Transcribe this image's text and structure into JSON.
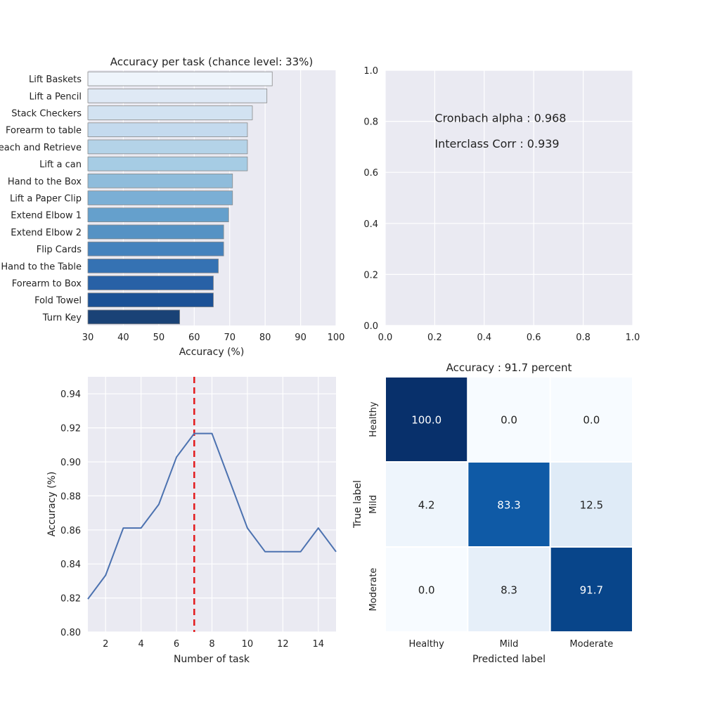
{
  "chart_data": [
    {
      "type": "bar",
      "orientation": "horizontal",
      "title": "Accuracy per task (chance level: 33%)",
      "xlabel": "Accuracy (%)",
      "ylabel": "",
      "xlim": [
        30,
        100
      ],
      "xticks": [
        "30",
        "40",
        "50",
        "60",
        "70",
        "80",
        "90",
        "100"
      ],
      "categories": [
        "Lift Baskets",
        "Lift a Pencil",
        "Stack Checkers",
        "Forearm to table",
        "Reach and Retrieve",
        "Lift a can",
        "Hand to the Box",
        "Lift a Paper Clip",
        "Extend Elbow 1",
        "Extend Elbow 2",
        "Flip Cards",
        "Hand to the Table",
        "Forearm to Box",
        "Fold Towel",
        "Turn Key"
      ],
      "values": [
        82.0,
        80.5,
        76.4,
        75.0,
        75.0,
        75.0,
        70.8,
        70.8,
        69.7,
        68.3,
        68.3,
        66.8,
        65.4,
        65.4,
        55.9
      ],
      "colors": [
        "#eef4fb",
        "#dfe9f5",
        "#d2e2f1",
        "#c4daee",
        "#b4d3e8",
        "#a6cce4",
        "#8fbcdb",
        "#7bafd5",
        "#65a0cc",
        "#5592c4",
        "#4482bd",
        "#3572b3",
        "#2861a6",
        "#1b5196",
        "#1a4276"
      ]
    },
    {
      "type": "scatter",
      "title": "",
      "xlim": [
        0.0,
        1.0
      ],
      "ylim": [
        0.0,
        1.0
      ],
      "xticks": [
        "0.0",
        "0.2",
        "0.4",
        "0.6",
        "0.8",
        "1.0"
      ],
      "yticks": [
        "0.0",
        "0.2",
        "0.4",
        "0.6",
        "0.8",
        "1.0"
      ],
      "annotations": [
        {
          "text": "Cronbach alpha : 0.968",
          "x": 0.2,
          "y": 0.8
        },
        {
          "text": "Interclass Corr : 0.939",
          "x": 0.2,
          "y": 0.7
        }
      ]
    },
    {
      "type": "line",
      "title": "",
      "xlabel": "Number of task",
      "ylabel": "Accuracy (%)",
      "xlim": [
        1,
        15
      ],
      "ylim": [
        0.8,
        0.95
      ],
      "xticks": [
        "2",
        "4",
        "6",
        "8",
        "10",
        "12",
        "14"
      ],
      "yticks": [
        "0.80",
        "0.82",
        "0.84",
        "0.86",
        "0.88",
        "0.90",
        "0.92",
        "0.94"
      ],
      "x": [
        1,
        2,
        3,
        4,
        5,
        6,
        7,
        8,
        9,
        10,
        11,
        12,
        13,
        14,
        15
      ],
      "values": [
        0.8194,
        0.8333,
        0.8611,
        0.8611,
        0.875,
        0.9028,
        0.9167,
        0.9167,
        0.8889,
        0.8611,
        0.8472,
        0.8472,
        0.8472,
        0.8611,
        0.8472
      ],
      "vline": {
        "x": 7,
        "color": "#e31a1c",
        "style": "dashed"
      },
      "line_color": "#4c72b0"
    },
    {
      "type": "heatmap",
      "title": "Accuracy : 91.7 percent",
      "xlabel": "Predicted label",
      "ylabel": "True label",
      "row_labels": [
        "Healthy",
        "Mild",
        "Moderate"
      ],
      "col_labels": [
        "Healthy",
        "Mild",
        "Moderate"
      ],
      "cells": [
        [
          {
            "text": "100.0",
            "value": 100.0,
            "color": "#08306b"
          },
          {
            "text": "0.0",
            "value": 0.0,
            "color": "#f7fbff"
          },
          {
            "text": "0.0",
            "value": 0.0,
            "color": "#f7fbff"
          }
        ],
        [
          {
            "text": "4.2",
            "value": 4.2,
            "color": "#eef5fc"
          },
          {
            "text": "83.3",
            "value": 83.3,
            "color": "#0f5aa6"
          },
          {
            "text": "12.5",
            "value": 12.5,
            "color": "#dfebf7"
          }
        ],
        [
          {
            "text": "0.0",
            "value": 0.0,
            "color": "#f7fbff"
          },
          {
            "text": "8.3",
            "value": 8.3,
            "color": "#e6eff9"
          },
          {
            "text": "91.7",
            "value": 91.7,
            "color": "#08458a"
          }
        ]
      ]
    }
  ]
}
